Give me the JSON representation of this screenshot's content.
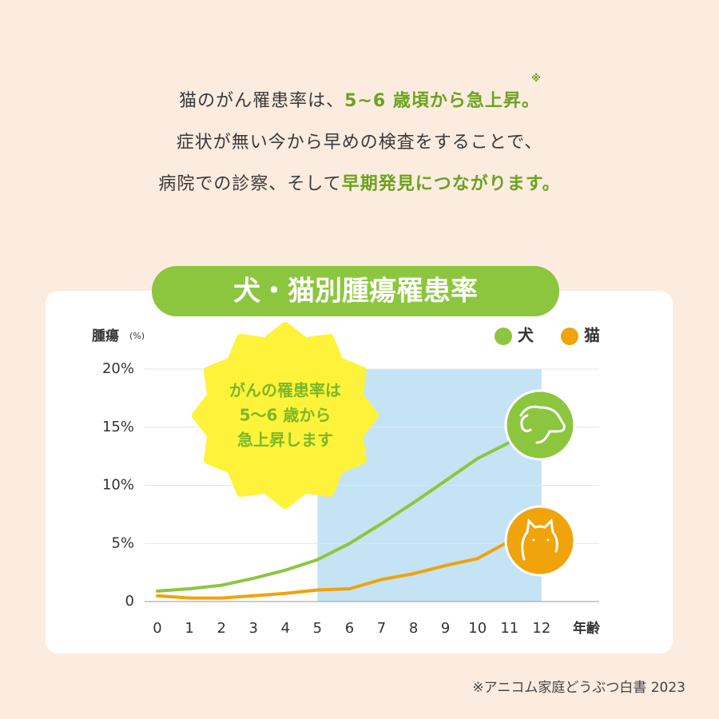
{
  "intro": {
    "lines": [
      [
        {
          "text": "猫のがん罹患率は、"
        },
        {
          "text": "5~6 歳頃から急上昇。",
          "emphasis": true,
          "note_mark": "※"
        }
      ],
      [
        {
          "text": "症状が無い今から早めの検査をすることで、"
        }
      ],
      [
        {
          "text": "病院での診察、そして"
        },
        {
          "text": "早期発見につながります。",
          "emphasis": true
        }
      ]
    ]
  },
  "chart_data": {
    "type": "line",
    "title": "犬・猫別腫瘍罹患率",
    "y_label": "腫瘍",
    "y_unit": "(%)",
    "x_label": "年齢",
    "x": [
      0,
      1,
      2,
      3,
      4,
      5,
      6,
      7,
      8,
      9,
      10,
      11
    ],
    "xlim": [
      -0.4,
      13.8
    ],
    "xticks": [
      0,
      1,
      2,
      3,
      4,
      5,
      6,
      7,
      8,
      9,
      10,
      11,
      12
    ],
    "ylim": [
      0,
      20
    ],
    "yticks": [
      0,
      {
        "value": 5,
        "label": "5%"
      },
      {
        "value": 10,
        "label": "10%"
      },
      {
        "value": 15,
        "label": "15%"
      },
      {
        "value": 20,
        "label": "20%"
      }
    ],
    "grid": true,
    "highlight": [
      5,
      12
    ],
    "highlight_color": "#c4e3f5",
    "annotation": [
      "がんの罹患率は",
      "5〜6 歳から",
      "急上昇します"
    ],
    "series": [
      {
        "name": "犬",
        "color": "#8cc63f",
        "values": [
          0.9,
          1.1,
          1.4,
          2.0,
          2.7,
          3.6,
          5.0,
          6.7,
          8.5,
          10.4,
          12.3,
          13.7
        ]
      },
      {
        "name": "猫",
        "color": "#f0a30a",
        "values": [
          0.5,
          0.3,
          0.3,
          0.5,
          0.7,
          1.0,
          1.1,
          1.9,
          2.4,
          3.1,
          3.7,
          5.2
        ]
      }
    ]
  },
  "source": "※アニコム家庭どうぶつ白書 2023"
}
